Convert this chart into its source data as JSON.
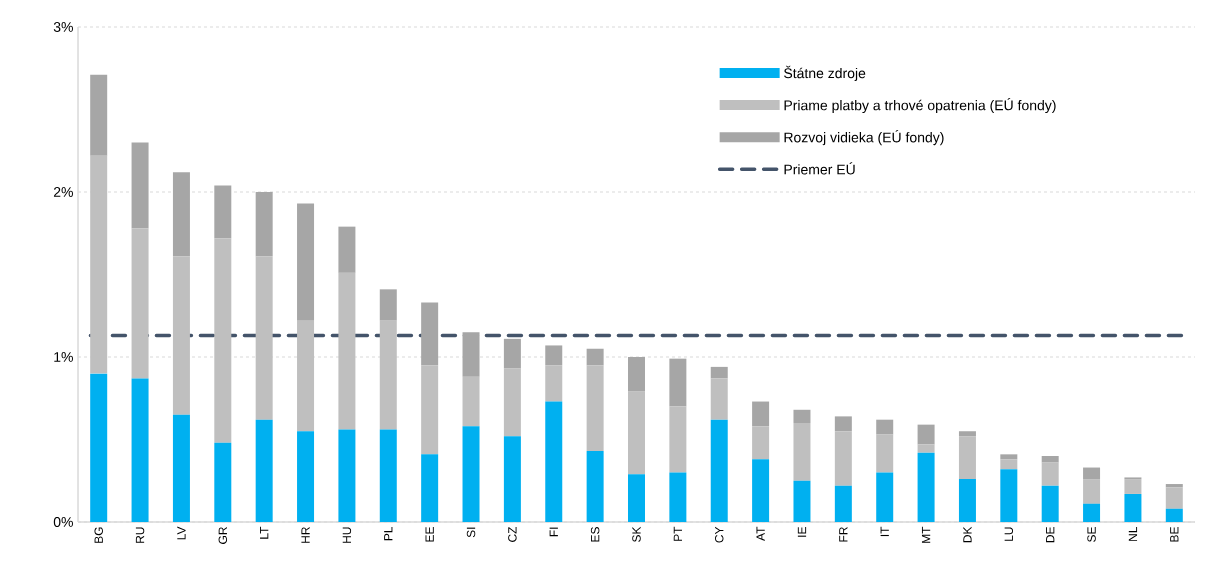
{
  "chart_data": {
    "type": "bar",
    "stacked": true,
    "categories": [
      "BG",
      "RU",
      "LV",
      "GR",
      "LT",
      "HR",
      "HU",
      "PL",
      "EE",
      "SI",
      "CZ",
      "FI",
      "ES",
      "SK",
      "PT",
      "CY",
      "AT",
      "IE",
      "FR",
      "IT",
      "MT",
      "DK",
      "LU",
      "DE",
      "SE",
      "NL",
      "BE"
    ],
    "series": [
      {
        "name": "Štátne zdroje",
        "color": "#00b0f0",
        "values": [
          0.9,
          0.87,
          0.65,
          0.48,
          0.62,
          0.55,
          0.56,
          0.56,
          0.41,
          0.58,
          0.52,
          0.73,
          0.43,
          0.29,
          0.3,
          0.62,
          0.38,
          0.25,
          0.22,
          0.3,
          0.42,
          0.26,
          0.32,
          0.22,
          0.11,
          0.17,
          0.08
        ]
      },
      {
        "name": "Priame platby a trhové opatrenia (EÚ fondy)",
        "color": "#bfbfbf",
        "values": [
          1.32,
          0.91,
          0.96,
          1.24,
          0.99,
          0.67,
          0.95,
          0.66,
          0.54,
          0.3,
          0.41,
          0.22,
          0.52,
          0.5,
          0.4,
          0.25,
          0.2,
          0.35,
          0.33,
          0.23,
          0.05,
          0.26,
          0.06,
          0.14,
          0.15,
          0.09,
          0.13
        ]
      },
      {
        "name": "Rozvoj vidieka (EÚ fondy)",
        "color": "#a6a6a6",
        "values": [
          0.49,
          0.52,
          0.51,
          0.32,
          0.39,
          0.71,
          0.28,
          0.19,
          0.38,
          0.27,
          0.18,
          0.12,
          0.1,
          0.21,
          0.29,
          0.07,
          0.15,
          0.08,
          0.09,
          0.09,
          0.12,
          0.03,
          0.03,
          0.04,
          0.07,
          0.01,
          0.02
        ]
      }
    ],
    "ref_lines": [
      {
        "axis": "y",
        "value": 1.13,
        "label": "Priemer EÚ",
        "color": "#44546a",
        "line_style": "dashed"
      }
    ],
    "ylim": [
      0,
      3
    ],
    "yticks": [
      {
        "value": 0,
        "label": "0%"
      },
      {
        "value": 1,
        "label": "1%"
      },
      {
        "value": 2,
        "label": "2%"
      },
      {
        "value": 3,
        "label": "3%"
      }
    ],
    "grid": "y",
    "legend": "top right"
  }
}
